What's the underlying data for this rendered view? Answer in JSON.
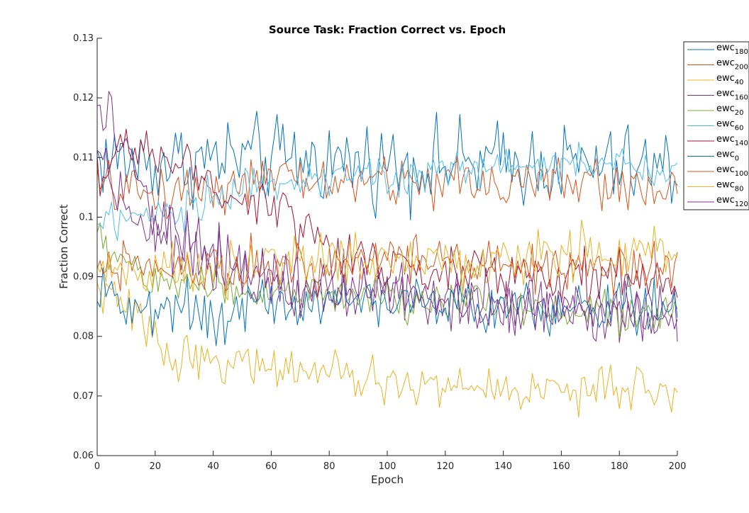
{
  "chart_data": {
    "type": "line",
    "title": "Source Task: Fraction Correct vs. Epoch",
    "xlabel": "Epoch",
    "ylabel": "Fraction Correct",
    "xlim": [
      0,
      200
    ],
    "ylim": [
      0.06,
      0.13
    ],
    "xticks": [
      0,
      20,
      40,
      60,
      80,
      100,
      120,
      140,
      160,
      180,
      200
    ],
    "yticks": [
      "0.06",
      "0.07",
      "0.08",
      "0.09",
      "0.1",
      "0.11",
      "0.12",
      "0.13"
    ],
    "grid": false,
    "legend_position": "top-right",
    "series": [
      {
        "name": "ewc",
        "sub": "180",
        "color": "#0072BD",
        "anchors": [
          [
            0,
            0.11
          ],
          [
            20,
            0.109
          ],
          [
            50,
            0.11
          ],
          [
            100,
            0.109
          ],
          [
            150,
            0.109
          ],
          [
            200,
            0.108
          ]
        ],
        "noise": 0.0035
      },
      {
        "name": "ewc",
        "sub": "200",
        "color": "#D95319",
        "anchors": [
          [
            0,
            0.105
          ],
          [
            20,
            0.104
          ],
          [
            50,
            0.106
          ],
          [
            100,
            0.106
          ],
          [
            150,
            0.106
          ],
          [
            200,
            0.105
          ]
        ],
        "noise": 0.0022
      },
      {
        "name": "ewc",
        "sub": "40",
        "color": "#EDB120",
        "anchors": [
          [
            0,
            0.088
          ],
          [
            10,
            0.085
          ],
          [
            25,
            0.077
          ],
          [
            40,
            0.076
          ],
          [
            60,
            0.075
          ],
          [
            100,
            0.072
          ],
          [
            150,
            0.071
          ],
          [
            200,
            0.071
          ]
        ],
        "noise": 0.0018
      },
      {
        "name": "ewc",
        "sub": "160",
        "color": "#7E2F8E",
        "anchors": [
          [
            0,
            0.112
          ],
          [
            10,
            0.102
          ],
          [
            30,
            0.094
          ],
          [
            60,
            0.09
          ],
          [
            100,
            0.087
          ],
          [
            150,
            0.085
          ],
          [
            200,
            0.084
          ]
        ],
        "noise": 0.0025
      },
      {
        "name": "ewc",
        "sub": "20",
        "color": "#77AC30",
        "anchors": [
          [
            0,
            0.096
          ],
          [
            20,
            0.089
          ],
          [
            50,
            0.088
          ],
          [
            100,
            0.086
          ],
          [
            150,
            0.085
          ],
          [
            200,
            0.084
          ]
        ],
        "noise": 0.0018
      },
      {
        "name": "ewc",
        "sub": "60",
        "color": "#4DBEEE",
        "anchors": [
          [
            0,
            0.099
          ],
          [
            20,
            0.099
          ],
          [
            40,
            0.104
          ],
          [
            60,
            0.106
          ],
          [
            100,
            0.107
          ],
          [
            150,
            0.109
          ],
          [
            200,
            0.108
          ]
        ],
        "noise": 0.0018
      },
      {
        "name": "ewc",
        "sub": "140",
        "color": "#A2142F",
        "anchors": [
          [
            0,
            0.108
          ],
          [
            20,
            0.111
          ],
          [
            40,
            0.105
          ],
          [
            60,
            0.103
          ],
          [
            80,
            0.094
          ],
          [
            100,
            0.092
          ],
          [
            150,
            0.09
          ],
          [
            200,
            0.089
          ]
        ],
        "noise": 0.0022
      },
      {
        "name": "ewc",
        "sub": "0",
        "color": "#0072BD",
        "anchors": [
          [
            0,
            0.09
          ],
          [
            10,
            0.085
          ],
          [
            40,
            0.084
          ],
          [
            80,
            0.086
          ],
          [
            120,
            0.086
          ],
          [
            160,
            0.084
          ],
          [
            200,
            0.085
          ]
        ],
        "noise": 0.0022
      },
      {
        "name": "ewc",
        "sub": "100",
        "color": "#D95319",
        "anchors": [
          [
            0,
            0.093
          ],
          [
            20,
            0.091
          ],
          [
            50,
            0.092
          ],
          [
            100,
            0.093
          ],
          [
            150,
            0.092
          ],
          [
            200,
            0.091
          ]
        ],
        "noise": 0.0022
      },
      {
        "name": "ewc",
        "sub": "80",
        "color": "#EDB120",
        "anchors": [
          [
            0,
            0.091
          ],
          [
            20,
            0.09
          ],
          [
            60,
            0.092
          ],
          [
            100,
            0.093
          ],
          [
            150,
            0.093
          ],
          [
            200,
            0.094
          ]
        ],
        "noise": 0.0022
      },
      {
        "name": "ewc",
        "sub": "120",
        "color": "#7E2F8E",
        "anchors": [
          [
            0,
            0.12
          ],
          [
            8,
            0.112
          ],
          [
            20,
            0.099
          ],
          [
            40,
            0.093
          ],
          [
            80,
            0.088
          ],
          [
            120,
            0.086
          ],
          [
            160,
            0.085
          ],
          [
            200,
            0.083
          ]
        ],
        "noise": 0.0025
      }
    ]
  }
}
